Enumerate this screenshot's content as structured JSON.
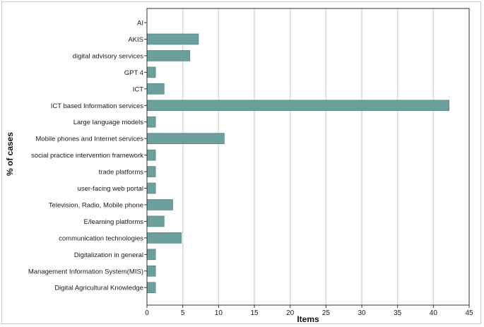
{
  "chart_data": {
    "type": "bar",
    "orientation": "horizontal",
    "title": "",
    "xlabel": "Items",
    "ylabel": "% of cases",
    "xlim": [
      0,
      45
    ],
    "xticks": [
      0,
      5,
      10,
      15,
      20,
      25,
      30,
      35,
      40,
      45
    ],
    "grid": true,
    "bar_color": "#6a9f9b",
    "categories": [
      "AI",
      "AKIS",
      "digital advisory services",
      "GPT 4",
      "ICT",
      "ICT based Information services",
      "Large language models",
      "Mobile phones and Internet services",
      "social practice intervention framework",
      "trade platforms",
      "user-facing web portal",
      "Television, Radio, Mobile phone",
      "E/learning platforms",
      "communication technologies",
      "Digitalization in general",
      "Management Information System(MIS)",
      "Digital Agricultural Knowledge"
    ],
    "values": [
      0,
      7.2,
      6.0,
      1.2,
      2.4,
      42.2,
      1.2,
      10.8,
      1.2,
      1.2,
      1.2,
      3.6,
      2.4,
      4.8,
      1.2,
      1.2,
      1.2
    ]
  }
}
